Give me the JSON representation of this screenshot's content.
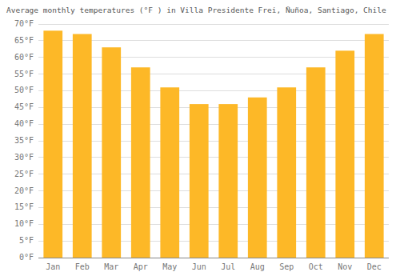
{
  "chart_data": {
    "type": "bar",
    "title": "Average monthly temperatures (°F ) in Villa Presidente Frei, Ñuñoa, Santiago, Chile",
    "categories": [
      "Jan",
      "Feb",
      "Mar",
      "Apr",
      "May",
      "Jun",
      "Jul",
      "Aug",
      "Sep",
      "Oct",
      "Nov",
      "Dec"
    ],
    "values": [
      68,
      67,
      63,
      57,
      51,
      46,
      46,
      48,
      51,
      57,
      62,
      67
    ],
    "color": "#FDB827",
    "ylim": [
      0,
      70
    ],
    "yticks": [
      {
        "value": 0,
        "label": "0°F"
      },
      {
        "value": 5,
        "label": "5°F"
      },
      {
        "value": 10,
        "label": "10°F"
      },
      {
        "value": 15,
        "label": "15°F"
      },
      {
        "value": 20,
        "label": "20°F"
      },
      {
        "value": 25,
        "label": "25°F"
      },
      {
        "value": 30,
        "label": "30°F"
      },
      {
        "value": 35,
        "label": "35°F"
      },
      {
        "value": 40,
        "label": "40°F"
      },
      {
        "value": 45,
        "label": "45°F"
      },
      {
        "value": 50,
        "label": "50°F"
      },
      {
        "value": 55,
        "label": "55°F"
      },
      {
        "value": 60,
        "label": "60°F"
      },
      {
        "value": 65,
        "label": "65°F"
      },
      {
        "value": 70,
        "label": "70°F"
      }
    ],
    "grid": true
  }
}
